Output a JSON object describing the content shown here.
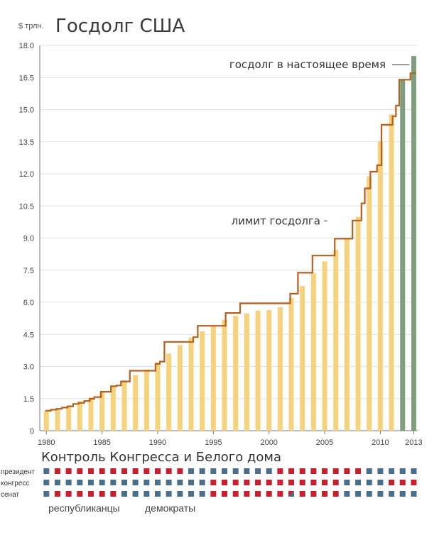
{
  "header": {
    "unit": "$ трлн.",
    "title": "Госдолг США"
  },
  "colors": {
    "bar": "#f7d27d",
    "bar_recent": "#7f9e7f",
    "limit_line": "#b4601f",
    "grid": "#e3e3e3",
    "axis": "#777777",
    "republican": "#c42030",
    "democrat": "#4a6e8e"
  },
  "chart_data": {
    "type": "bar",
    "title": "Госдолг США",
    "ylabel": "$ трлн.",
    "xlabel": "",
    "ylim": [
      0,
      18
    ],
    "yticks": [
      "0",
      "1.5",
      "3.0",
      "4.5",
      "6.0",
      "7.5",
      "9.0",
      "10.5",
      "12.0",
      "13.5",
      "15.0",
      "16.5",
      "18.0"
    ],
    "xticks": [
      "1980",
      "1985",
      "1990",
      "1995",
      "2000",
      "2005",
      "2010",
      "2013"
    ],
    "grid": true,
    "years": [
      1980,
      1981,
      1982,
      1983,
      1984,
      1985,
      1986,
      1987,
      1988,
      1989,
      1990,
      1991,
      1992,
      1993,
      1994,
      1995,
      1996,
      1997,
      1998,
      1999,
      2000,
      2001,
      2002,
      2003,
      2004,
      2005,
      2006,
      2007,
      2008,
      2009,
      2010,
      2011,
      2012,
      2013
    ],
    "series": [
      {
        "name": "",
        "type": "bar",
        "values": [
          0.91,
          1.0,
          1.14,
          1.37,
          1.56,
          1.82,
          2.12,
          2.35,
          2.6,
          2.86,
          3.2,
          3.6,
          4.0,
          4.35,
          4.64,
          4.92,
          5.18,
          5.37,
          5.48,
          5.61,
          5.63,
          5.77,
          6.2,
          6.76,
          7.35,
          7.91,
          8.45,
          8.95,
          9.99,
          11.88,
          13.53,
          14.78,
          16.4,
          17.5
        ],
        "highlight_from_index": 32
      },
      {
        "name": "лимит госдолга",
        "type": "step",
        "points": [
          [
            1979.9,
            0.93
          ],
          [
            1980.4,
            0.98
          ],
          [
            1980.9,
            1.02
          ],
          [
            1981.4,
            1.08
          ],
          [
            1981.9,
            1.14
          ],
          [
            1982.4,
            1.25
          ],
          [
            1982.9,
            1.3
          ],
          [
            1983.4,
            1.39
          ],
          [
            1983.9,
            1.49
          ],
          [
            1984.3,
            1.57
          ],
          [
            1984.9,
            1.82
          ],
          [
            1985.8,
            2.08
          ],
          [
            1986.3,
            2.11
          ],
          [
            1986.7,
            2.3
          ],
          [
            1987.5,
            2.8
          ],
          [
            1989.8,
            3.12
          ],
          [
            1990.2,
            3.23
          ],
          [
            1990.6,
            4.15
          ],
          [
            1993.2,
            4.37
          ],
          [
            1993.6,
            4.9
          ],
          [
            1996.1,
            5.5
          ],
          [
            1997.4,
            5.95
          ],
          [
            2001.9,
            6.4
          ],
          [
            2002.6,
            7.38
          ],
          [
            2003.9,
            8.18
          ],
          [
            2005.9,
            8.97
          ],
          [
            2007.5,
            9.82
          ],
          [
            2008.3,
            10.62
          ],
          [
            2008.6,
            11.32
          ],
          [
            2009.1,
            12.1
          ],
          [
            2009.7,
            12.4
          ],
          [
            2010.1,
            14.29
          ],
          [
            2011.1,
            14.69
          ],
          [
            2011.4,
            15.19
          ],
          [
            2011.7,
            16.4
          ],
          [
            2012.7,
            16.7
          ],
          [
            2013.2,
            16.7
          ]
        ]
      }
    ],
    "annotations": [
      {
        "text": "госдолг в настоящее время",
        "x": 2013,
        "y": 17.1
      },
      {
        "text": "лимит госдолга",
        "x": 2005.1,
        "y": 9.8
      }
    ]
  },
  "control_section": {
    "title": "Контроль Конгресса и Белого дома",
    "row_labels": [
      "президент",
      "конгресс",
      "сенат"
    ],
    "legend": [
      "республиканцы",
      "демократы"
    ],
    "rows": [
      [
        "D",
        "R",
        "R",
        "R",
        "R",
        "R",
        "R",
        "R",
        "R",
        "R",
        "R",
        "R",
        "R",
        "D",
        "D",
        "D",
        "D",
        "D",
        "D",
        "D",
        "D",
        "R",
        "R",
        "R",
        "R",
        "R",
        "R",
        "R",
        "R",
        "D",
        "D",
        "D",
        "D",
        "D"
      ],
      [
        "D",
        "D",
        "D",
        "D",
        "D",
        "D",
        "D",
        "D",
        "D",
        "D",
        "D",
        "D",
        "D",
        "D",
        "D",
        "R",
        "R",
        "R",
        "R",
        "R",
        "R",
        "R",
        "R",
        "R",
        "R",
        "R",
        "R",
        "D",
        "D",
        "D",
        "D",
        "R",
        "R",
        "R"
      ],
      [
        "D",
        "R",
        "R",
        "R",
        "R",
        "R",
        "R",
        "D",
        "D",
        "D",
        "D",
        "D",
        "D",
        "D",
        "D",
        "R",
        "R",
        "R",
        "R",
        "R",
        "R",
        "R",
        "D",
        "R",
        "R",
        "R",
        "R",
        "D",
        "D",
        "D",
        "D",
        "D",
        "D",
        "D"
      ]
    ],
    "split_cells": [
      [
        2,
        22
      ]
    ]
  }
}
